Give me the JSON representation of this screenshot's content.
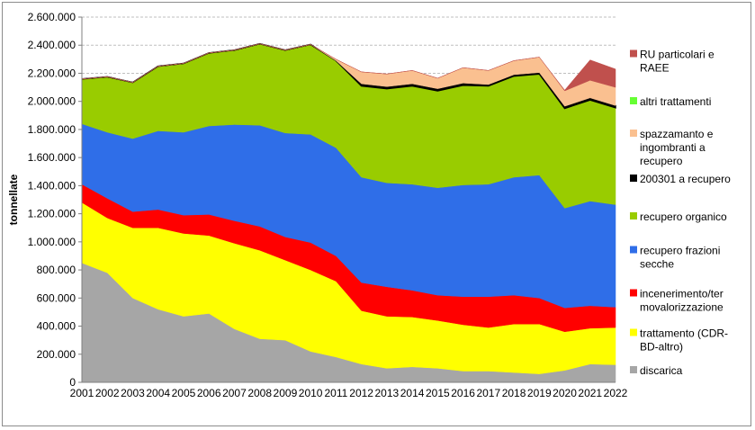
{
  "chart_data": {
    "type": "area",
    "stacked": true,
    "ylabel": "tonnellate",
    "xlabel": "",
    "title": "",
    "ylim": [
      0,
      2600000
    ],
    "y_ticks": [
      0,
      200000,
      400000,
      600000,
      800000,
      1000000,
      1200000,
      1400000,
      1600000,
      1800000,
      2000000,
      2200000,
      2400000,
      2600000
    ],
    "y_tick_labels": [
      "0",
      "200.000",
      "400.000",
      "600.000",
      "800.000",
      "1.000.000",
      "1.200.000",
      "1.400.000",
      "1.600.000",
      "1.800.000",
      "2.000.000",
      "2.200.000",
      "2.400.000",
      "2.600.000"
    ],
    "grid": "horizontal dashed",
    "legend_position": "right",
    "x": [
      "2001",
      "2002",
      "2003",
      "2004",
      "2005",
      "2006",
      "2007",
      "2008",
      "2009",
      "2010",
      "2011",
      "2012",
      "2013",
      "2014",
      "2015",
      "2016",
      "2017",
      "2018",
      "2019",
      "2020",
      "2021",
      "2022"
    ],
    "series": [
      {
        "name": "discarica",
        "color": "#a6a6a6",
        "values": [
          850000,
          780000,
          600000,
          520000,
          470000,
          490000,
          380000,
          310000,
          300000,
          220000,
          180000,
          130000,
          100000,
          110000,
          100000,
          80000,
          80000,
          70000,
          60000,
          85000,
          130000,
          125000
        ]
      },
      {
        "name": "trattamento (CDR-BD-altro)",
        "color": "#ffff00",
        "values": [
          430000,
          390000,
          500000,
          580000,
          590000,
          555000,
          610000,
          630000,
          570000,
          580000,
          540000,
          380000,
          370000,
          355000,
          340000,
          330000,
          310000,
          345000,
          355000,
          275000,
          255000,
          265000
        ]
      },
      {
        "name": "incenerimento/termovalorizzazione",
        "color": "#ff0000",
        "values": [
          130000,
          140000,
          115000,
          130000,
          130000,
          150000,
          160000,
          170000,
          165000,
          195000,
          180000,
          200000,
          210000,
          190000,
          180000,
          200000,
          220000,
          205000,
          185000,
          170000,
          160000,
          145000
        ]
      },
      {
        "name": "recupero frazioni secche",
        "color": "#2f6ee8",
        "values": [
          430000,
          470000,
          520000,
          560000,
          590000,
          630000,
          685000,
          720000,
          740000,
          770000,
          770000,
          750000,
          740000,
          755000,
          765000,
          795000,
          800000,
          840000,
          875000,
          710000,
          745000,
          730000
        ]
      },
      {
        "name": "recupero organico",
        "color": "#99cc00",
        "values": [
          320000,
          395000,
          400000,
          460000,
          490000,
          520000,
          530000,
          580000,
          590000,
          640000,
          620000,
          650000,
          670000,
          700000,
          690000,
          710000,
          700000,
          720000,
          720000,
          710000,
          720000,
          690000
        ]
      },
      {
        "name": "200301 a recupero",
        "color": "#000000",
        "values": [
          0,
          0,
          0,
          0,
          0,
          0,
          0,
          0,
          0,
          0,
          0,
          15000,
          15000,
          15000,
          15000,
          15000,
          10000,
          10000,
          10000,
          15000,
          15000,
          15000
        ]
      },
      {
        "name": "spazzamanto e ingombranti a recupero",
        "color": "#fac090",
        "values": [
          0,
          0,
          0,
          0,
          0,
          0,
          0,
          0,
          0,
          0,
          10000,
          85000,
          90000,
          95000,
          75000,
          110000,
          100000,
          100000,
          110000,
          110000,
          125000,
          130000
        ]
      },
      {
        "name": "altri trattamenti",
        "color": "#66ff33",
        "values": [
          0,
          0,
          0,
          0,
          0,
          0,
          0,
          0,
          0,
          0,
          0,
          0,
          0,
          0,
          0,
          0,
          0,
          0,
          0,
          0,
          0,
          0
        ]
      },
      {
        "name": "RU particolari e RAEE",
        "color": "#c0504d",
        "values": [
          0,
          0,
          0,
          0,
          0,
          0,
          0,
          0,
          0,
          0,
          0,
          0,
          0,
          0,
          0,
          0,
          0,
          0,
          0,
          5000,
          145000,
          130000
        ]
      }
    ],
    "legend_lines": [
      {
        "series": "RU particolari e RAEE",
        "lines": [
          "RU particolari e",
          "RAEE"
        ]
      },
      {
        "series": "altri trattamenti",
        "lines": [
          "altri trattamenti"
        ]
      },
      {
        "series": "spazzamanto e ingombranti a recupero",
        "lines": [
          "spazzamanto e",
          "ingombranti a",
          "recupero"
        ]
      },
      {
        "series": "200301 a recupero",
        "lines": [
          "200301 a recupero"
        ]
      },
      {
        "series": "recupero organico",
        "lines": [
          "recupero organico"
        ]
      },
      {
        "series": "recupero frazioni secche",
        "lines": [
          "recupero frazioni",
          "secche"
        ]
      },
      {
        "series": "incenerimento/termovalorizzazione",
        "lines": [
          "incenerimento/ter",
          "movalorizzazione"
        ]
      },
      {
        "series": "trattamento (CDR-BD-altro)",
        "lines": [
          "trattamento (CDR-",
          "BD-altro)"
        ]
      },
      {
        "series": "discarica",
        "lines": [
          "discarica"
        ]
      }
    ]
  }
}
